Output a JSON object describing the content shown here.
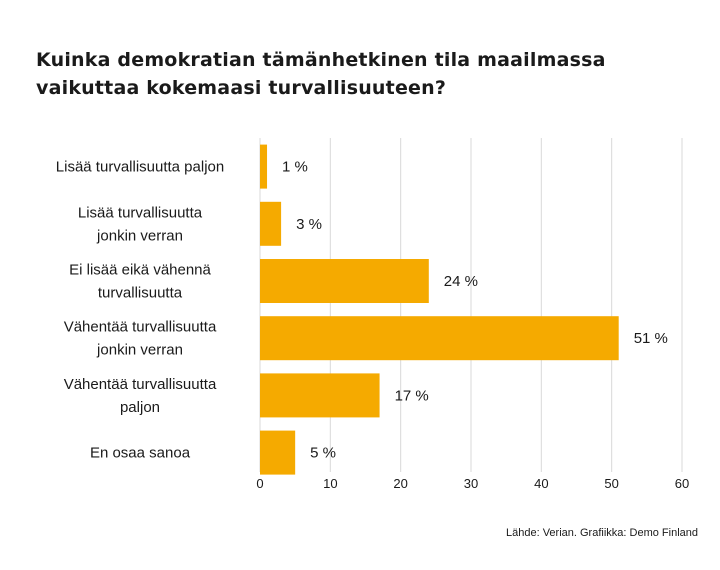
{
  "title_lines": [
    "Kuinka demokratian tämänhetkinen tila maailmassa",
    "vaikuttaa kokemaasi turvallisuuteen?"
  ],
  "source": "Lähde: Verian. Grafiikka:  Demo Finland",
  "colors": {
    "bar": "#F5AA00",
    "grid": "#d9d9d9"
  },
  "chart_data": {
    "type": "bar",
    "orientation": "horizontal",
    "title": "Kuinka demokratian tämänhetkinen tila maailmassa vaikuttaa kokemaasi turvallisuuteen?",
    "categories": [
      [
        "Lisää turvallisuutta paljon"
      ],
      [
        "Lisää turvallisuutta",
        "jonkin verran"
      ],
      [
        "Ei lisää eikä vähennä",
        "turvallisuutta"
      ],
      [
        "Vähentää turvallisuutta",
        "jonkin verran"
      ],
      [
        "Vähentää turvallisuutta",
        "paljon"
      ],
      [
        "En osaa sanoa"
      ]
    ],
    "values": [
      1,
      3,
      24,
      51,
      17,
      5
    ],
    "value_labels": [
      "1 %",
      "3 %",
      "24 %",
      "51 %",
      "17 %",
      "5 %"
    ],
    "xlim": [
      0,
      60
    ],
    "xticks": [
      "0",
      "10",
      "20",
      "30",
      "40",
      "50",
      "60"
    ],
    "xtick_values": [
      0,
      10,
      20,
      30,
      40,
      50,
      60
    ],
    "grid": "vertical",
    "legend": "none"
  }
}
